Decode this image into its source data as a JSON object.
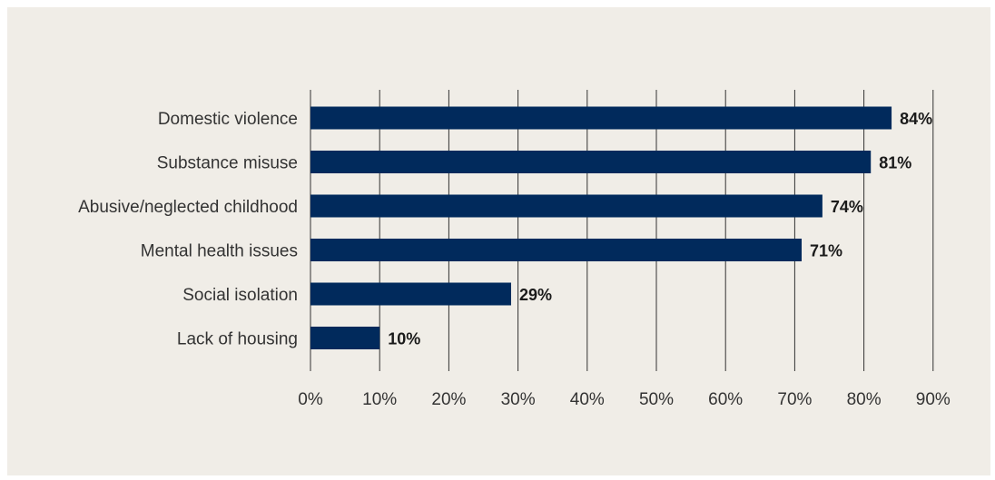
{
  "colors": {
    "background": "#f0ede7",
    "bar": "#012a5c",
    "grid": "#333333",
    "text": "#333333"
  },
  "chart_data": {
    "type": "bar",
    "orientation": "horizontal",
    "title": "",
    "xlabel": "",
    "ylabel": "",
    "categories": [
      "Domestic violence",
      "Substance misuse",
      "Abusive/neglected childhood",
      "Mental health issues",
      "Social isolation",
      "Lack of housing"
    ],
    "values": [
      84,
      81,
      74,
      71,
      29,
      10
    ],
    "data_labels": [
      "84%",
      "81%",
      "74%",
      "71%",
      "29%",
      "10%"
    ],
    "xlim": [
      0,
      90
    ],
    "x_ticks": [
      "0%",
      "10%",
      "20%",
      "30%",
      "40%",
      "50%",
      "60%",
      "70%",
      "80%",
      "90%"
    ],
    "grid": "vertical",
    "legend": "none"
  }
}
